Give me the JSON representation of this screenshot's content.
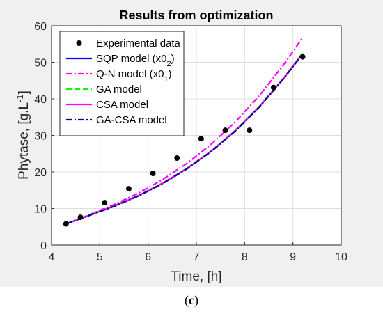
{
  "chart_data": {
    "type": "line",
    "title": "Results from optimization",
    "xlabel": "Time, [h]",
    "ylabel_main": "Phytase, [g.L",
    "ylabel_sup": "-1",
    "ylabel_end": "]",
    "xlim": [
      4,
      10
    ],
    "ylim": [
      0,
      60
    ],
    "xticks": [
      4,
      5,
      6,
      7,
      8,
      9,
      10
    ],
    "yticks": [
      0,
      10,
      20,
      30,
      40,
      50,
      60
    ],
    "grid": true,
    "legend_position": "top-left",
    "scatter": {
      "name": "Experimental data",
      "color": "#000000",
      "x": [
        4.3,
        4.6,
        5.1,
        5.6,
        6.1,
        6.6,
        7.1,
        7.6,
        8.1,
        8.6,
        9.2
      ],
      "y": [
        5.8,
        7.6,
        11.6,
        15.4,
        19.6,
        23.8,
        29.1,
        31.4,
        31.4,
        43.1,
        51.5
      ]
    },
    "series": [
      {
        "name": "SQP model (x0",
        "name_sub": "2",
        "name_end": ")",
        "color": "#0000ff",
        "dash": "solid",
        "x": [
          4.3,
          4.8,
          5.3,
          5.8,
          6.3,
          6.8,
          7.3,
          7.8,
          8.3,
          8.8,
          9.2
        ],
        "y": [
          5.8,
          8.2,
          10.7,
          13.5,
          16.9,
          20.9,
          25.6,
          31.2,
          37.8,
          45.5,
          52.4
        ]
      },
      {
        "name": "Q-N model (x0",
        "name_sub": "1",
        "name_end": ")",
        "color": "#ff00ff",
        "dash": "dashdot",
        "x": [
          4.3,
          4.8,
          5.3,
          5.8,
          6.3,
          6.8,
          7.3,
          7.8,
          8.3,
          8.8,
          9.2
        ],
        "y": [
          5.8,
          8.4,
          11.1,
          14.2,
          17.9,
          22.3,
          27.5,
          33.6,
          40.8,
          49.2,
          56.7
        ]
      },
      {
        "name": "GA model",
        "color": "#00ff00",
        "dash": "dashed",
        "x": [
          4.3,
          4.8,
          5.3,
          5.8,
          6.3,
          6.8,
          7.3,
          7.8,
          8.3,
          8.8,
          9.2
        ],
        "y": [
          5.8,
          8.3,
          10.8,
          13.6,
          17.0,
          21.0,
          25.7,
          31.3,
          37.9,
          45.6,
          52.5
        ]
      },
      {
        "name": "CSA model",
        "color": "#ff00ff",
        "dash": "solid",
        "x": [
          4.3,
          4.8,
          5.3,
          5.8,
          6.3,
          6.8,
          7.3,
          7.8,
          8.3,
          8.8,
          9.2
        ],
        "y": [
          5.8,
          8.2,
          10.7,
          13.5,
          16.9,
          20.9,
          25.6,
          31.2,
          37.8,
          45.5,
          52.4
        ]
      },
      {
        "name": "GA-CSA model",
        "color": "#00008b",
        "dash": "dashdot",
        "x": [
          4.3,
          4.8,
          5.3,
          5.8,
          6.3,
          6.8,
          7.3,
          7.8,
          8.3,
          8.8,
          9.2
        ],
        "y": [
          5.8,
          8.2,
          10.6,
          13.4,
          16.8,
          20.8,
          25.5,
          31.1,
          37.7,
          45.4,
          52.2
        ]
      }
    ]
  },
  "caption": {
    "open": "(",
    "letter": "c",
    "close": ")"
  }
}
